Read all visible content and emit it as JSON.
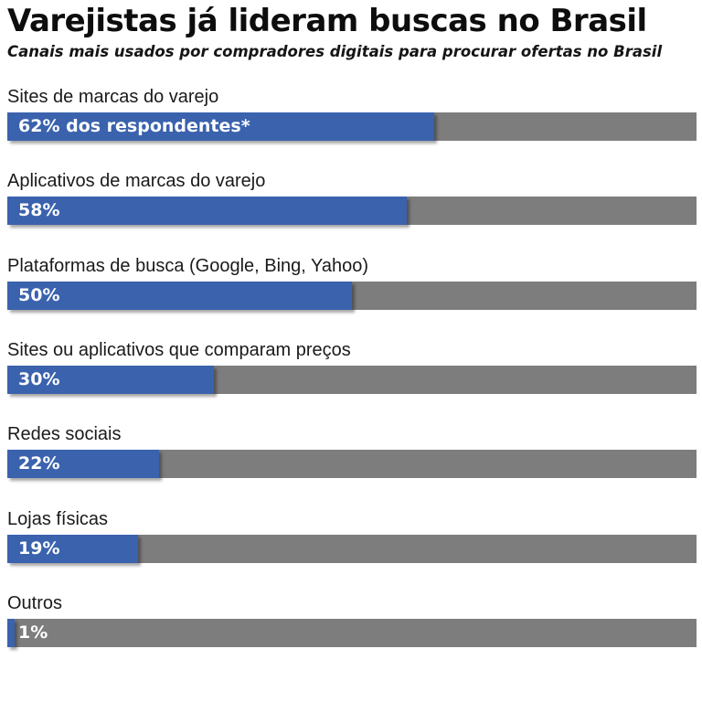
{
  "title": "Varejistas já lideram buscas no Brasil",
  "subtitle": "Canais mais usados por compradores digitais para procurar ofertas no Brasil",
  "colors": {
    "bar": "#3a62ad",
    "track": "#7d7d7d",
    "value_text": "#ffffff"
  },
  "chart_data": {
    "type": "bar",
    "orientation": "horizontal",
    "unit": "%",
    "xlim": [
      0,
      100
    ],
    "grid": false,
    "categories": [
      "Sites de marcas do varejo",
      "Aplicativos de marcas do varejo",
      "Plataformas de busca (Google, Bing, Yahoo)",
      "Sites ou aplicativos que comparam preços",
      "Redes sociais",
      "Lojas físicas",
      "Outros"
    ],
    "values": [
      62,
      58,
      50,
      30,
      22,
      19,
      1
    ],
    "value_labels": [
      "62% dos respondentes*",
      "58%",
      "50%",
      "30%",
      "22%",
      "19%",
      "1%"
    ]
  }
}
